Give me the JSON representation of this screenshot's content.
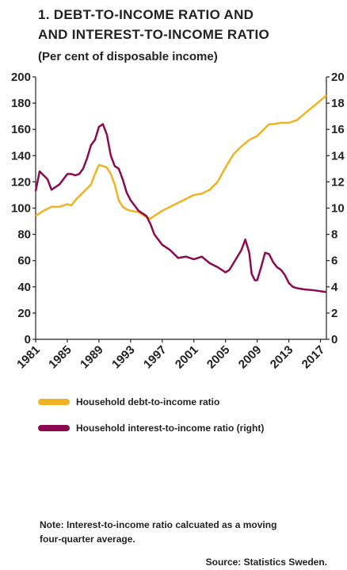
{
  "chart_data": {
    "type": "line",
    "title": [
      "1. DEBT-TO-INCOME RATIO AND",
      "AND INTEREST-TO-INCOME RATIO"
    ],
    "subtitle": "(Per cent of disposable income)",
    "xlim": [
      1981,
      2017.75
    ],
    "xticks": [
      1981,
      1985,
      1989,
      1993,
      1997,
      2001,
      2005,
      2009,
      2013,
      2017
    ],
    "ylim": [
      0,
      200
    ],
    "yticks": [
      0,
      20,
      40,
      60,
      80,
      100,
      120,
      140,
      160,
      180,
      200
    ],
    "y2lim": [
      0,
      20
    ],
    "y2ticks": [
      0,
      2,
      4,
      6,
      8,
      10,
      12,
      14,
      16,
      18,
      20
    ],
    "grid": false,
    "series": [
      {
        "name": "Household debt-to-income ratio",
        "color": "#f0b323",
        "x": [
          1981,
          1982,
          1983,
          1984,
          1985,
          1985.5,
          1986,
          1987,
          1988,
          1988.5,
          1989,
          1989.5,
          1990,
          1990.5,
          1991,
          1991.5,
          1992,
          1992.5,
          1993,
          1994,
          1995,
          1995.5,
          1996,
          1997,
          1998,
          1999,
          2000,
          2001,
          2002,
          2003,
          2004,
          2005,
          2006,
          2007,
          2008,
          2009,
          2010,
          2010.5,
          2011,
          2012,
          2013,
          2014,
          2015,
          2016,
          2017,
          2017.75
        ],
        "values": [
          94,
          98,
          101,
          101,
          103,
          102,
          106,
          112,
          118,
          126,
          133,
          132,
          131,
          126,
          118,
          106,
          101,
          99,
          98,
          97,
          93,
          92,
          94,
          98,
          101,
          104,
          107,
          110,
          111,
          114,
          120,
          131,
          141,
          147,
          152,
          155,
          161,
          164,
          164,
          165,
          165,
          167,
          172,
          177,
          182,
          186
        ]
      },
      {
        "name": "Household interest-to-income ratio (right)",
        "color": "#8b0a50",
        "axis": "y2",
        "x": [
          1981,
          1981.5,
          1982,
          1982.5,
          1983,
          1983.5,
          1984,
          1985,
          1985.5,
          1986,
          1986.5,
          1987,
          1987.5,
          1988,
          1988.5,
          1989,
          1989.5,
          1990,
          1990.5,
          1991,
          1991.5,
          1992,
          1992.5,
          1993,
          1994,
          1995,
          1995.5,
          1996,
          1997,
          1998,
          1999,
          2000,
          2001,
          2002,
          2003,
          2004,
          2005,
          2005.5,
          2006,
          2007,
          2007.5,
          2008,
          2008.3,
          2008.7,
          2009,
          2009.5,
          2010,
          2010.5,
          2011,
          2011.5,
          2012,
          2012.5,
          2013,
          2013.5,
          2014,
          2015,
          2016,
          2017.75
        ],
        "values": [
          11.3,
          12.8,
          12.5,
          12.2,
          11.4,
          11.6,
          11.8,
          12.6,
          12.6,
          12.5,
          12.6,
          13.0,
          13.8,
          14.8,
          15.2,
          16.2,
          16.4,
          15.6,
          14.0,
          13.2,
          13.0,
          12.2,
          11.2,
          10.6,
          9.8,
          9.4,
          8.8,
          8.0,
          7.2,
          6.8,
          6.2,
          6.3,
          6.1,
          6.3,
          5.8,
          5.5,
          5.1,
          5.3,
          5.8,
          6.8,
          7.6,
          6.6,
          5.0,
          4.5,
          4.5,
          5.5,
          6.6,
          6.5,
          5.9,
          5.5,
          5.3,
          4.9,
          4.3,
          4.0,
          3.9,
          3.8,
          3.75,
          3.6
        ]
      }
    ],
    "note": [
      "Note: Interest-to-income ratio calcuated as a moving",
      "four-quarter average."
    ],
    "source": "Source: Statistics Sweden."
  }
}
